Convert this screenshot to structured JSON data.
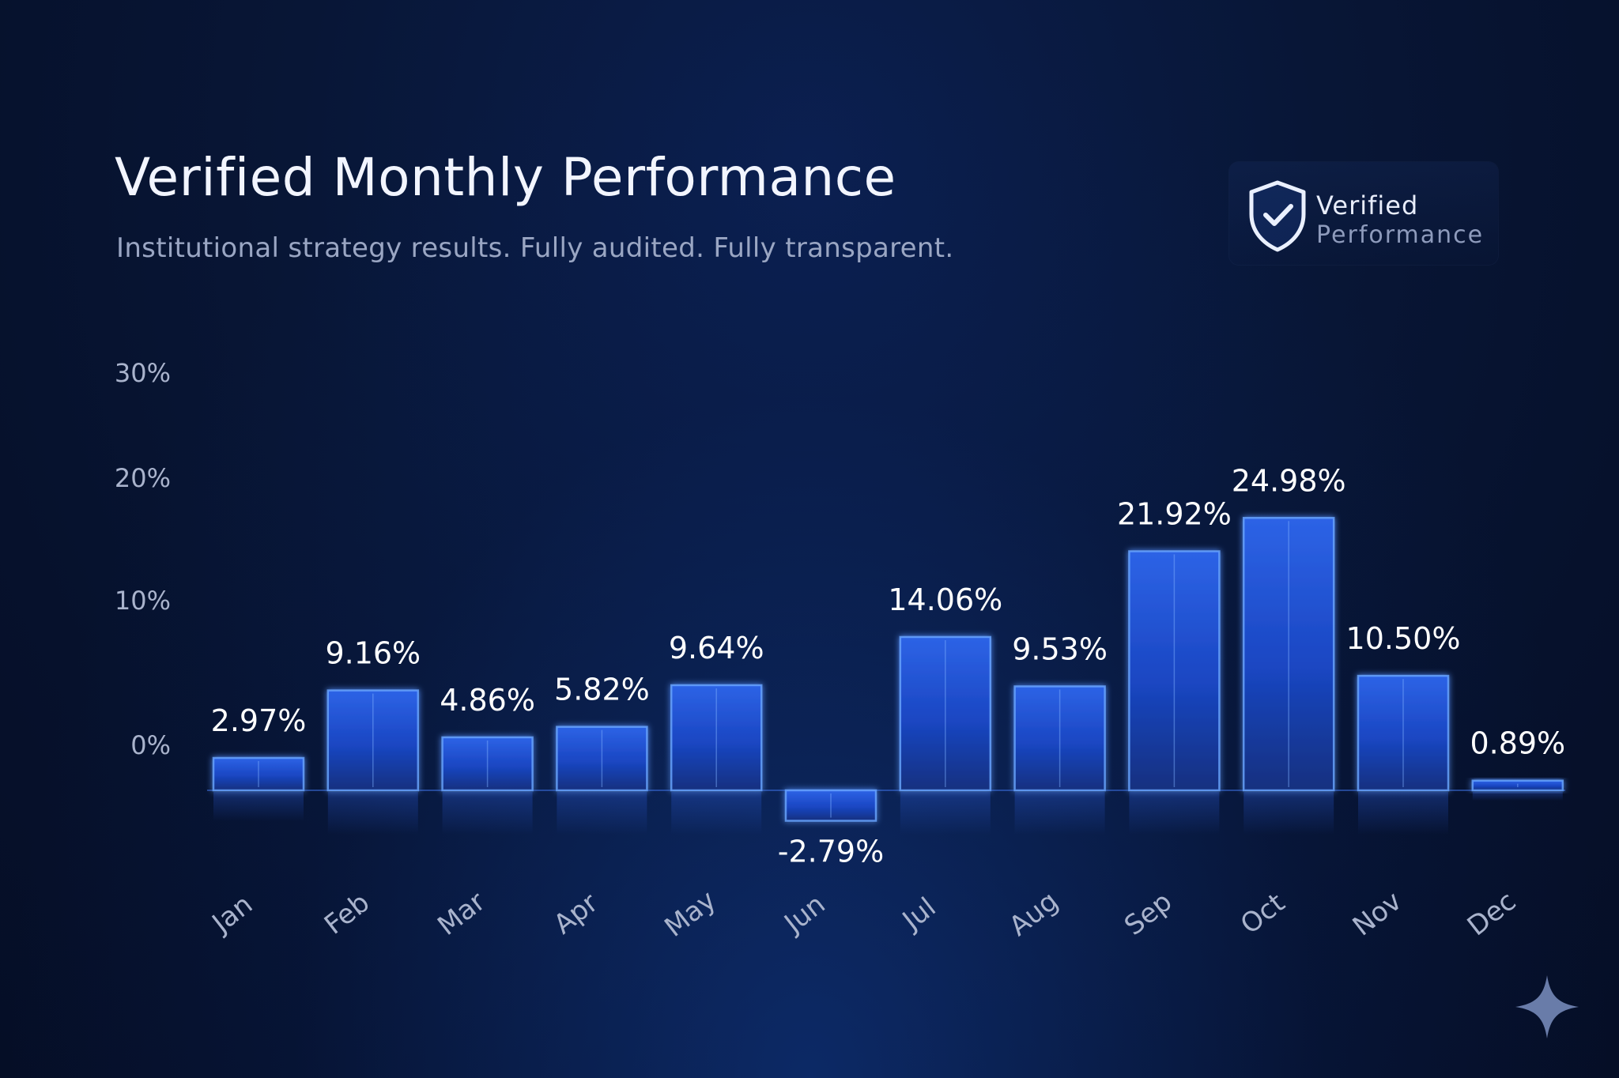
{
  "header": {
    "title": "Verified Monthly Performance",
    "subtitle": "Institutional strategy results. Fully audited. Fully transparent."
  },
  "badge": {
    "icon": "shield-check-icon",
    "line1": "Verified",
    "line2": "Performance"
  },
  "decoration": {
    "icon": "sparkle-icon"
  },
  "colors": {
    "background": "#06112c",
    "bar_fill": "#1a48c8",
    "bar_edge": "#6aa6ff",
    "label_text": "#ffffff",
    "axis_text": "#a9b3cc"
  },
  "chart_data": {
    "type": "bar",
    "title": "",
    "xlabel": "",
    "ylabel": "",
    "categories": [
      "Jan",
      "Feb",
      "Mar",
      "Apr",
      "May",
      "Jun",
      "Jul",
      "Aug",
      "Sep",
      "Oct",
      "Nov",
      "Dec"
    ],
    "values": [
      2.97,
      9.16,
      4.86,
      5.82,
      9.64,
      -2.79,
      14.06,
      9.53,
      21.92,
      24.98,
      10.5,
      0.89
    ],
    "value_labels": [
      "2.97%",
      "9.16%",
      "4.86%",
      "5.82%",
      "9.64%",
      "-2.79%",
      "14.06%",
      "9.53%",
      "21.92%",
      "24.98%",
      "10.50%",
      "0.89%"
    ],
    "y_ticks": [
      0,
      10,
      20,
      30
    ],
    "y_tick_labels": [
      "0%",
      "10%",
      "20%",
      "30%"
    ],
    "ylim": [
      -5,
      30
    ],
    "grid": false,
    "legend": "none"
  }
}
